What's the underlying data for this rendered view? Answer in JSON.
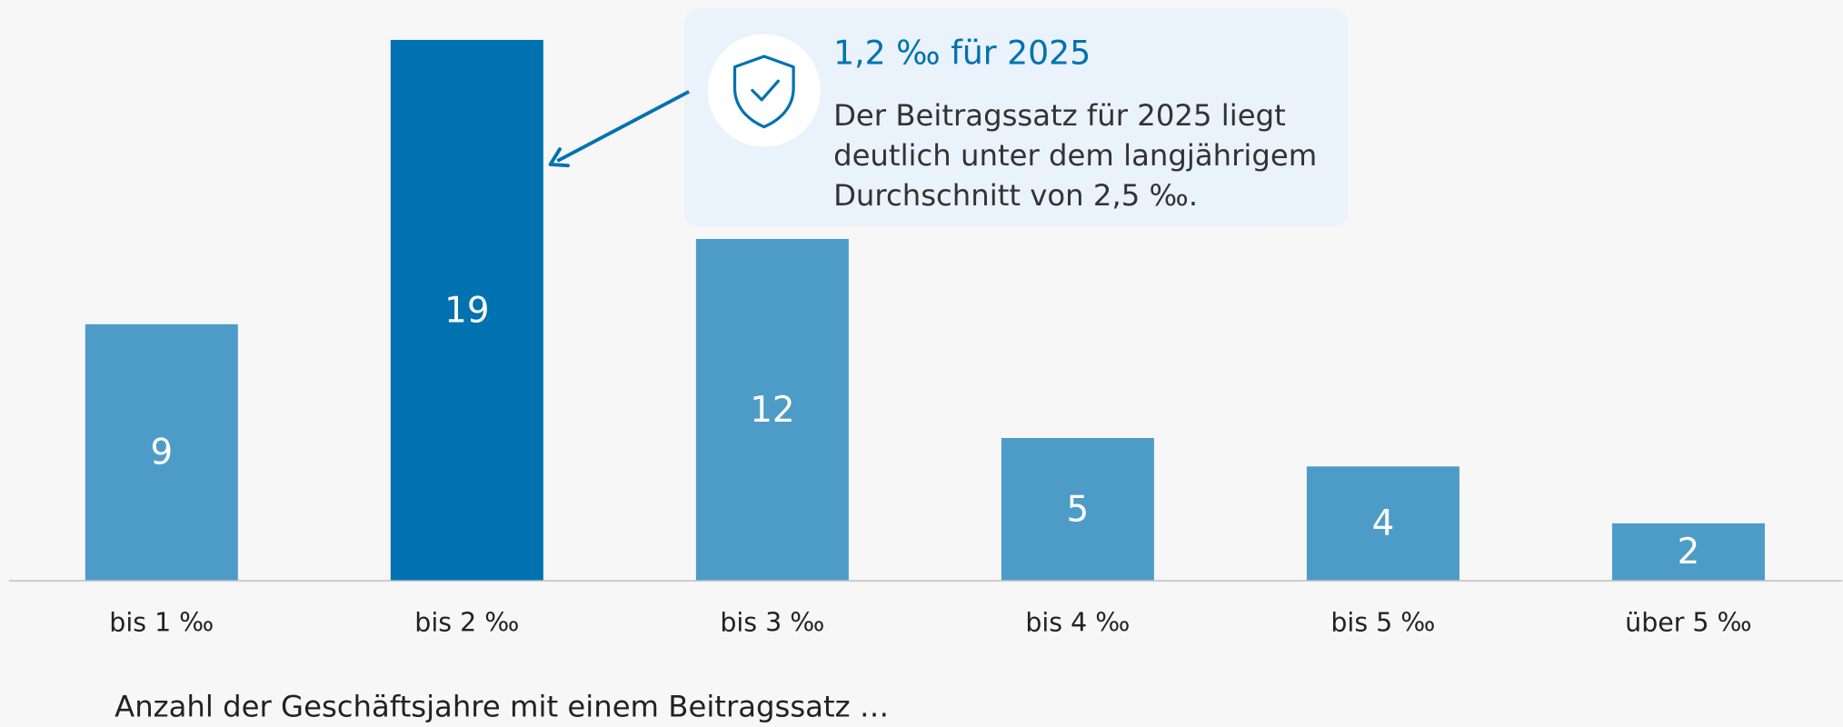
{
  "chart_data": {
    "type": "bar",
    "categories": [
      "bis 1 ‰",
      "bis 2 ‰",
      "bis 3 ‰",
      "bis 4 ‰",
      "bis 5 ‰",
      "über 5 ‰"
    ],
    "values": [
      9,
      19,
      12,
      5,
      4,
      2
    ],
    "colors": [
      "#4d9cc8",
      "#0072b0",
      "#4d9cc8",
      "#4d9cc8",
      "#4d9cc8",
      "#4d9cc8"
    ],
    "annotation": {
      "title": "1,2 ‰ für 2025",
      "lines": [
        "Der Beitragssatz für 2025 liegt",
        "deutlich unter dem langjährigem",
        "Durchschnitt von 2,5 ‰."
      ]
    },
    "caption": "Anzahl der Geschäftsjahre mit einem Beitragssatz …"
  }
}
